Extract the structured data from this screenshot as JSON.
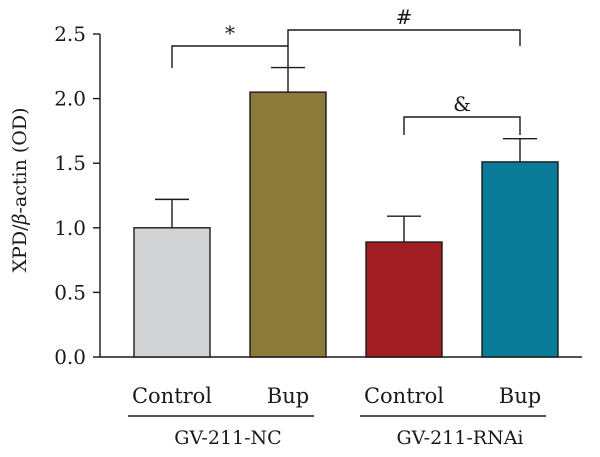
{
  "chart_data": {
    "type": "bar",
    "categories": [
      "Control",
      "Bup",
      "Control",
      "Bup"
    ],
    "groups": [
      {
        "label": "GV-211-NC",
        "categories": [
          0,
          1
        ]
      },
      {
        "label": "GV-211-RNAi",
        "categories": [
          2,
          3
        ]
      }
    ],
    "values": [
      1.0,
      2.05,
      0.89,
      1.51
    ],
    "errors": [
      0.22,
      0.19,
      0.2,
      0.18
    ],
    "colors": [
      "#d2d3d5",
      "#8b7a3a",
      "#a01d22",
      "#0a7b96"
    ],
    "ylabel_prefix": "XPD/",
    "ylabel_beta": "β",
    "ylabel_suffix": "-actin (OD)",
    "ylim": [
      0,
      2.5
    ],
    "yticks": [
      "0.0",
      "0.5",
      "1.0",
      "1.5",
      "2.0",
      "2.5"
    ],
    "significance": [
      {
        "symbol": "*",
        "from": 0,
        "to": 1
      },
      {
        "symbol": "#",
        "from": 1,
        "to": 3
      },
      {
        "symbol": "&",
        "from": 2,
        "to": 3
      }
    ]
  }
}
